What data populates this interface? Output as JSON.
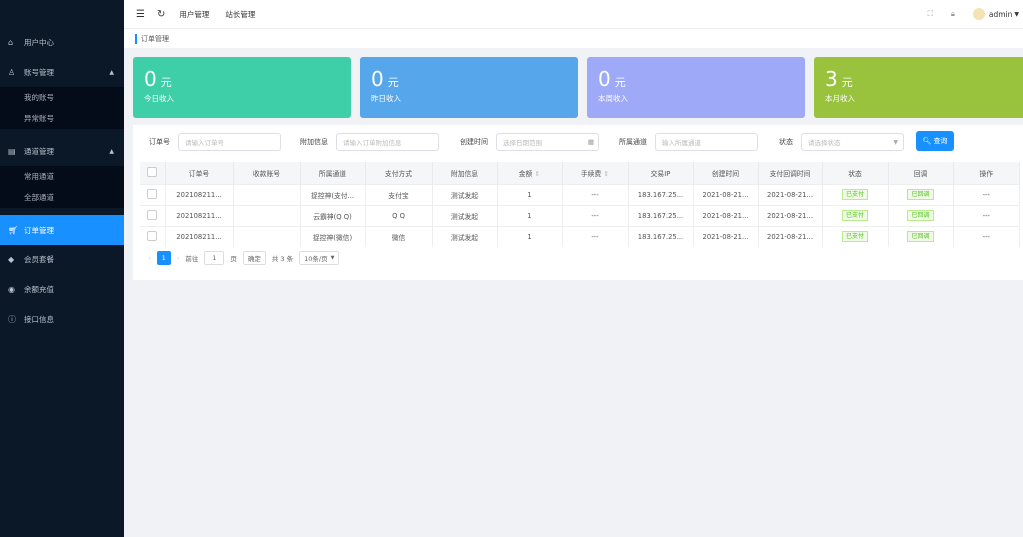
{
  "sidebar": {
    "items": [
      {
        "label": "用户中心",
        "icon": "home-icon"
      },
      {
        "label": "账号管理",
        "icon": "user-icon",
        "expanded": true,
        "children": [
          "我的账号",
          "异常账号"
        ]
      },
      {
        "label": "通道管理",
        "icon": "channel-icon",
        "expanded": true,
        "children": [
          "常用通道",
          "全部通道"
        ]
      },
      {
        "label": "订单管理",
        "icon": "cart-icon",
        "active": true
      },
      {
        "label": "会员套餐",
        "icon": "diamond-icon"
      },
      {
        "label": "余额充值",
        "icon": "recharge-icon"
      },
      {
        "label": "接口信息",
        "icon": "info-icon"
      }
    ]
  },
  "header": {
    "tabs": [
      "用户管理",
      "站长管理"
    ],
    "user": "admin"
  },
  "breadcrumb": "订单管理",
  "cards": [
    {
      "value": "0",
      "unit": "元",
      "label": "今日收入",
      "color": "#3ecfa9"
    },
    {
      "value": "0",
      "unit": "元",
      "label": "昨日收入",
      "color": "#55a6ea"
    },
    {
      "value": "0",
      "unit": "元",
      "label": "本周收入",
      "color": "#9ea9f7"
    },
    {
      "value": "3",
      "unit": "元",
      "label": "本月收入",
      "color": "#99c23d"
    }
  ],
  "filters": {
    "order_no": {
      "label": "订单号",
      "placeholder": "请输入订单号"
    },
    "extra": {
      "label": "附加信息",
      "placeholder": "请输入订单附加信息"
    },
    "created": {
      "label": "创建时间",
      "placeholder": "选择日期范围"
    },
    "channel": {
      "label": "所属通道",
      "placeholder": "输入所属通道"
    },
    "status": {
      "label": "状态",
      "placeholder": "请选择状态"
    },
    "search_label": "查询"
  },
  "table": {
    "headers": [
      "订单号",
      "收款账号",
      "所属通道",
      "支付方式",
      "附加信息",
      "金额",
      "手续费",
      "交易IP",
      "创建时间",
      "支付回调时间",
      "状态",
      "回调",
      "操作"
    ],
    "rows": [
      [
        "202108211...",
        "",
        "捉控神(支付...",
        "支付宝",
        "测试发起",
        "1",
        "---",
        "183.167.25...",
        "2021-08-21...",
        "2021-08-21...",
        "已支付",
        "已回调",
        "---"
      ],
      [
        "202108211...",
        "",
        "云霸神(Q Q)",
        "Q Q",
        "测试发起",
        "1",
        "---",
        "183.167.25...",
        "2021-08-21...",
        "2021-08-21...",
        "已支付",
        "已回调",
        "---"
      ],
      [
        "202108211...",
        "",
        "捉控神(微信)",
        "微信",
        "测试发起",
        "1",
        "---",
        "183.167.25...",
        "2021-08-21...",
        "2021-08-21...",
        "已支付",
        "已回调",
        "---"
      ]
    ]
  },
  "pager": {
    "current": "1",
    "goto_label": "前往",
    "goto_value": "1",
    "page_unit": "页",
    "confirm": "确定",
    "total": "共 3 条",
    "page_size": "10条/页"
  }
}
